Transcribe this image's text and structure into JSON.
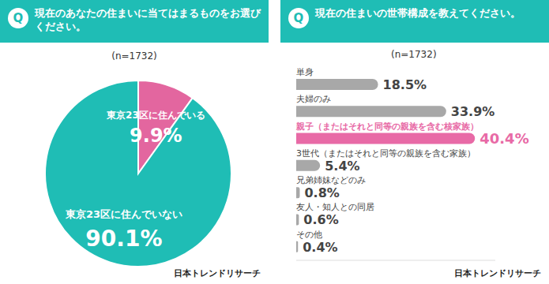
{
  "chart_data": [
    {
      "type": "pie",
      "badge": "Q",
      "title": "現在のあなたの住まいに当てはまるものをお選びください。",
      "subtitle": "(n=1732)",
      "source": "日本トレンドリサーチ",
      "categories": [
        "東京23区に住んでいる",
        "東京23区に住んでいない"
      ],
      "values": [
        9.9,
        90.1
      ],
      "value_labels": [
        "9.9%",
        "90.1%"
      ],
      "colors": [
        "#e3669f",
        "#1fbdb5"
      ],
      "data_labels": true
    },
    {
      "type": "bar",
      "orientation": "horizontal",
      "badge": "Q",
      "title": "現在の住まいの世帯構成を教えてください。",
      "subtitle": "(n=1732)",
      "source": "日本トレンドリサーチ",
      "categories": [
        "単身",
        "夫婦のみ",
        "親子（またはそれと同等の親族を含む核家族）",
        "3世代（またはそれと同等の親族を含む家族）",
        "兄弟姉妹などのみ",
        "友人・知人との同居",
        "その他"
      ],
      "values": [
        18.5,
        33.9,
        40.4,
        5.4,
        0.8,
        0.6,
        0.4
      ],
      "value_labels": [
        "18.5%",
        "33.9%",
        "40.4%",
        "5.4%",
        "0.8%",
        "0.6%",
        "0.4%"
      ],
      "colors": [
        "#a8a8a8",
        "#a8a8a8",
        "#e86aa6",
        "#a8a8a8",
        "#a8a8a8",
        "#a8a8a8",
        "#a8a8a8"
      ],
      "xlim": [
        0,
        45
      ],
      "tick_labels": false,
      "grid": false,
      "data_labels": true
    }
  ]
}
